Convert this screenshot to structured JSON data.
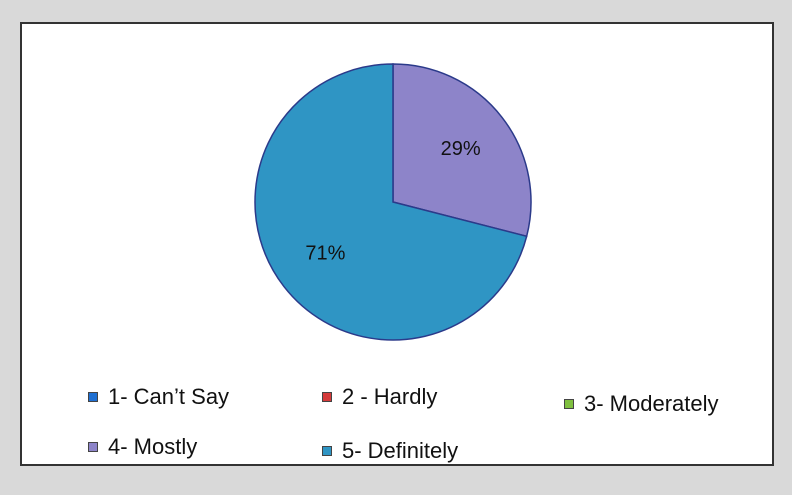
{
  "chart_data": {
    "type": "pie",
    "title": "",
    "slices": [
      {
        "label": "1- Can’t Say",
        "value": 0,
        "color": "#1f6fd1"
      },
      {
        "label": "2 - Hardly",
        "value": 0,
        "color": "#d43a3a"
      },
      {
        "label": "3- Moderately",
        "value": 0,
        "color": "#7fbf3f"
      },
      {
        "label": "4- Mostly",
        "value": 29,
        "color": "#8d84c9"
      },
      {
        "label": "5- Definitely",
        "value": 71,
        "color": "#2f95c4"
      }
    ],
    "data_labels": [
      "29%",
      "71%"
    ],
    "legend_position": "bottom"
  },
  "legend": {
    "item1": "1- Can’t Say",
    "item2": "2 - Hardly",
    "item3": "3- Moderately",
    "item4": "4- Mostly",
    "item5": "5- Definitely"
  }
}
